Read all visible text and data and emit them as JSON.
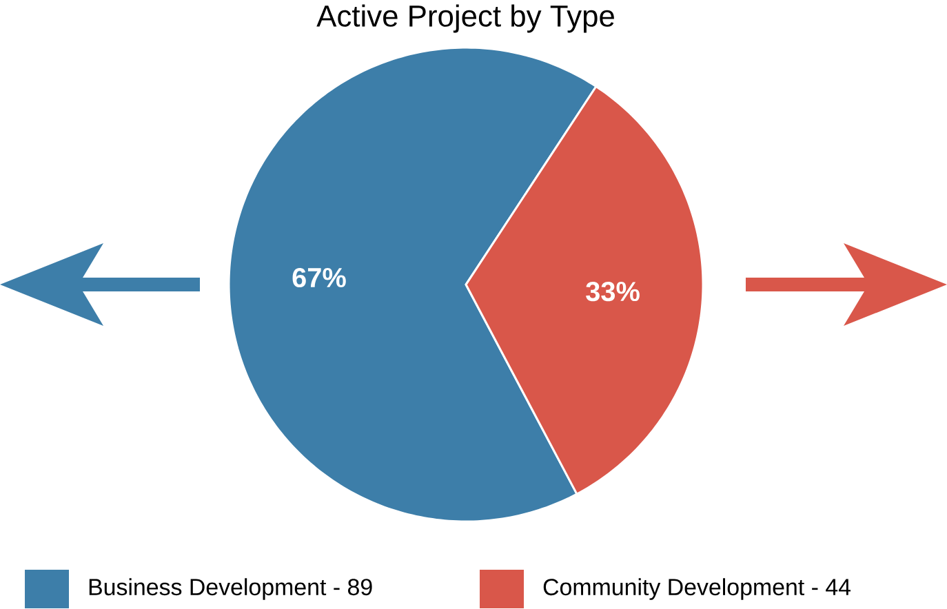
{
  "chart_data": {
    "type": "pie",
    "title": "Active Project by Type",
    "categories": [
      "Business Development - 89",
      "Community Development - 44"
    ],
    "values": [
      67,
      33
    ],
    "value_labels": [
      "67%",
      "33%"
    ],
    "colors": [
      "#3d7ea9",
      "#d9574a"
    ],
    "legend": "bottom"
  }
}
